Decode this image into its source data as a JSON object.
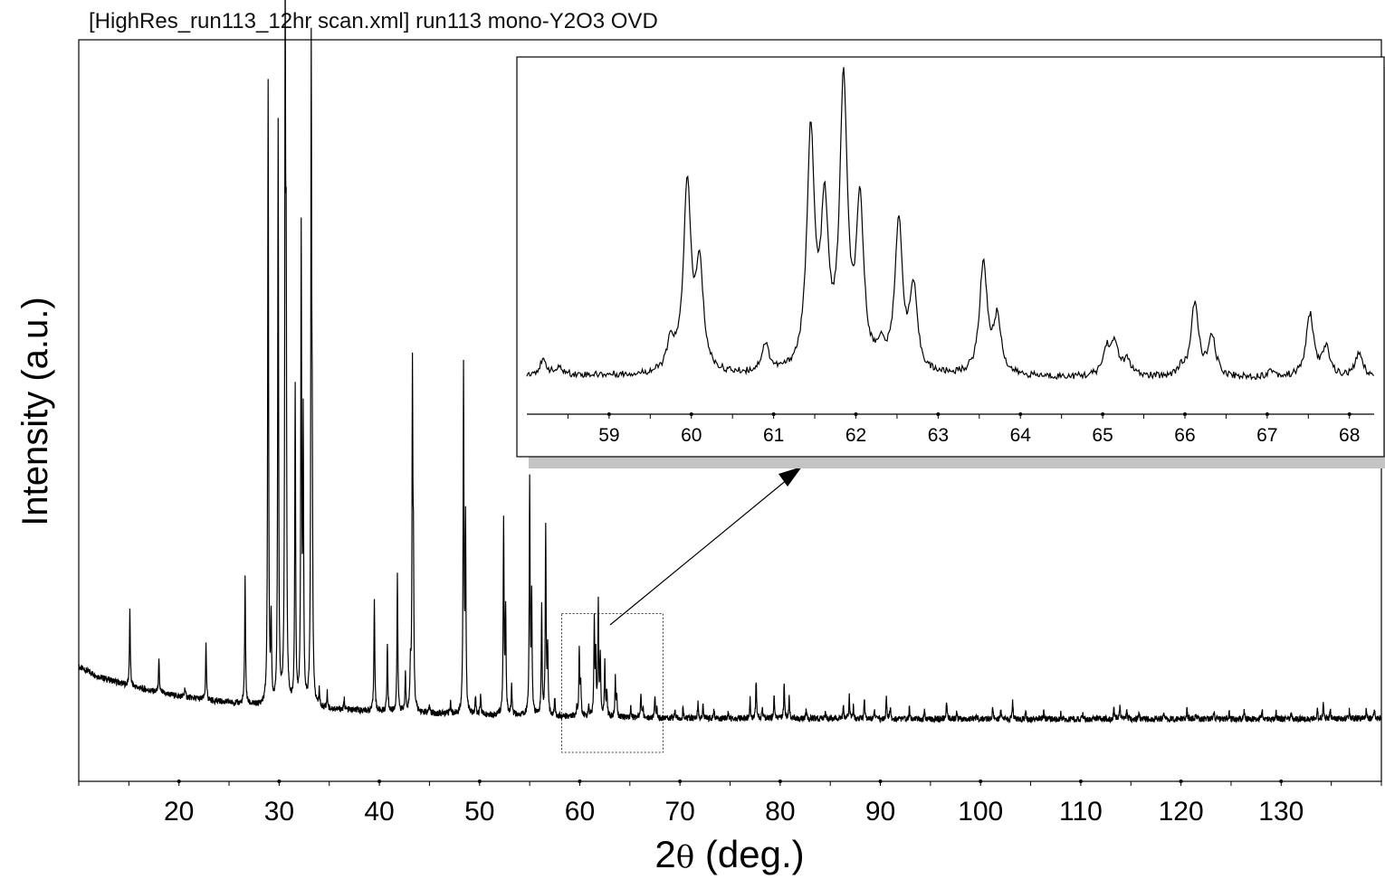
{
  "title": "[HighRes_run113_12hr scan.xml] run113 mono-Y2O3 OVD",
  "chart_data": [
    {
      "type": "line",
      "name": "main-pattern",
      "xlabel_prefix": "2",
      "xlabel_symbol": "θ",
      "xlabel_suffix": " (deg.)",
      "ylabel": "Intensity (a.u.)",
      "xlim": [
        10,
        140
      ],
      "ylim": [
        0,
        100
      ],
      "xticks": [
        20,
        30,
        40,
        50,
        60,
        70,
        80,
        90,
        100,
        110,
        120,
        130
      ],
      "grid": false,
      "background": {
        "x": [
          10,
          12,
          15,
          18,
          20,
          23,
          26,
          28,
          35,
          40,
          45,
          50,
          55,
          60,
          65,
          70,
          80,
          90,
          100,
          110,
          120,
          130,
          140
        ],
        "y": [
          12.3,
          10.9,
          9.6,
          8.6,
          8.1,
          7.5,
          7.0,
          6.7,
          6.2,
          5.9,
          5.6,
          5.4,
          5.3,
          5.1,
          5.0,
          4.9,
          4.9,
          4.8,
          4.8,
          4.8,
          4.8,
          4.8,
          4.9
        ]
      },
      "peaks": [
        {
          "x": 15.1,
          "y": 10.8
        },
        {
          "x": 18.0,
          "y": 4.6
        },
        {
          "x": 20.6,
          "y": 1.4
        },
        {
          "x": 22.7,
          "y": 7.8
        },
        {
          "x": 26.6,
          "y": 18.3
        },
        {
          "x": 28.9,
          "y": 89.9
        },
        {
          "x": 29.2,
          "y": 11.3
        },
        {
          "x": 29.9,
          "y": 83.5
        },
        {
          "x": 30.6,
          "y": 96.5
        },
        {
          "x": 30.7,
          "y": 55.0
        },
        {
          "x": 31.6,
          "y": 45.8
        },
        {
          "x": 32.2,
          "y": 67.6
        },
        {
          "x": 32.4,
          "y": 40.0
        },
        {
          "x": 33.2,
          "y": 91.5
        },
        {
          "x": 33.3,
          "y": 30.0
        },
        {
          "x": 34.0,
          "y": 2.5
        },
        {
          "x": 34.8,
          "y": 2.2
        },
        {
          "x": 36.5,
          "y": 1.5
        },
        {
          "x": 39.5,
          "y": 16.5
        },
        {
          "x": 40.8,
          "y": 9.7
        },
        {
          "x": 41.8,
          "y": 19.5
        },
        {
          "x": 42.6,
          "y": 5.3
        },
        {
          "x": 43.1,
          "y": 6.2
        },
        {
          "x": 43.3,
          "y": 47.4
        },
        {
          "x": 43.4,
          "y": 19.0
        },
        {
          "x": 45.0,
          "y": 1.2
        },
        {
          "x": 47.1,
          "y": 1.8
        },
        {
          "x": 48.4,
          "y": 49.4
        },
        {
          "x": 48.6,
          "y": 27.0
        },
        {
          "x": 49.6,
          "y": 2.4
        },
        {
          "x": 50.1,
          "y": 3.0
        },
        {
          "x": 52.4,
          "y": 28.0
        },
        {
          "x": 52.6,
          "y": 15.0
        },
        {
          "x": 53.2,
          "y": 4.0
        },
        {
          "x": 55.0,
          "y": 33.3
        },
        {
          "x": 55.2,
          "y": 17.0
        },
        {
          "x": 56.2,
          "y": 15.5
        },
        {
          "x": 56.6,
          "y": 27.0
        },
        {
          "x": 56.8,
          "y": 9.0
        },
        {
          "x": 57.5,
          "y": 2.5
        },
        {
          "x": 59.7,
          "y": 1.2
        },
        {
          "x": 59.95,
          "y": 9.8
        },
        {
          "x": 60.1,
          "y": 4.5
        },
        {
          "x": 60.9,
          "y": 1.6
        },
        {
          "x": 61.45,
          "y": 13.4
        },
        {
          "x": 61.6,
          "y": 8.0
        },
        {
          "x": 61.85,
          "y": 16.1
        },
        {
          "x": 62.05,
          "y": 8.6
        },
        {
          "x": 62.5,
          "y": 8.0
        },
        {
          "x": 62.7,
          "y": 3.8
        },
        {
          "x": 63.55,
          "y": 5.5
        },
        {
          "x": 63.7,
          "y": 2.8
        },
        {
          "x": 65.1,
          "y": 1.5
        },
        {
          "x": 66.1,
          "y": 3.3
        },
        {
          "x": 66.3,
          "y": 1.4
        },
        {
          "x": 67.5,
          "y": 3.0
        },
        {
          "x": 67.7,
          "y": 1.2
        },
        {
          "x": 69.5,
          "y": 1.2
        },
        {
          "x": 70.3,
          "y": 1.4
        },
        {
          "x": 71.8,
          "y": 2.2
        },
        {
          "x": 72.3,
          "y": 1.8
        },
        {
          "x": 73.4,
          "y": 1.2
        },
        {
          "x": 74.8,
          "y": 0.8
        },
        {
          "x": 77.0,
          "y": 2.8
        },
        {
          "x": 77.6,
          "y": 5.4
        },
        {
          "x": 78.2,
          "y": 1.5
        },
        {
          "x": 79.4,
          "y": 3.4
        },
        {
          "x": 80.4,
          "y": 5.0
        },
        {
          "x": 80.9,
          "y": 3.0
        },
        {
          "x": 82.6,
          "y": 1.3
        },
        {
          "x": 84.5,
          "y": 1.0
        },
        {
          "x": 86.3,
          "y": 1.8
        },
        {
          "x": 86.9,
          "y": 3.3
        },
        {
          "x": 87.3,
          "y": 1.7
        },
        {
          "x": 88.4,
          "y": 3.0
        },
        {
          "x": 89.4,
          "y": 1.4
        },
        {
          "x": 90.6,
          "y": 3.0
        },
        {
          "x": 91.0,
          "y": 1.9
        },
        {
          "x": 92.9,
          "y": 1.8
        },
        {
          "x": 94.4,
          "y": 1.3
        },
        {
          "x": 96.6,
          "y": 2.7
        },
        {
          "x": 97.6,
          "y": 1.0
        },
        {
          "x": 99.6,
          "y": 0.8
        },
        {
          "x": 101.2,
          "y": 1.8
        },
        {
          "x": 102.0,
          "y": 1.4
        },
        {
          "x": 103.2,
          "y": 2.4
        },
        {
          "x": 104.5,
          "y": 1.0
        },
        {
          "x": 106.3,
          "y": 1.0
        },
        {
          "x": 108.0,
          "y": 0.8
        },
        {
          "x": 110.2,
          "y": 0.8
        },
        {
          "x": 113.3,
          "y": 1.5
        },
        {
          "x": 113.9,
          "y": 1.9
        },
        {
          "x": 114.6,
          "y": 1.3
        },
        {
          "x": 115.8,
          "y": 0.9
        },
        {
          "x": 118.3,
          "y": 1.0
        },
        {
          "x": 120.6,
          "y": 1.3
        },
        {
          "x": 121.5,
          "y": 0.9
        },
        {
          "x": 123.3,
          "y": 0.9
        },
        {
          "x": 124.8,
          "y": 1.0
        },
        {
          "x": 126.3,
          "y": 1.3
        },
        {
          "x": 128.1,
          "y": 1.3
        },
        {
          "x": 129.5,
          "y": 1.0
        },
        {
          "x": 131.0,
          "y": 0.9
        },
        {
          "x": 133.6,
          "y": 1.6
        },
        {
          "x": 134.2,
          "y": 2.3
        },
        {
          "x": 134.9,
          "y": 1.4
        },
        {
          "x": 136.8,
          "y": 1.1
        },
        {
          "x": 138.5,
          "y": 1.4
        },
        {
          "x": 139.3,
          "y": 1.3
        }
      ],
      "zoom_region": {
        "x": [
          58.2,
          68.3
        ],
        "y": [
          0,
          20
        ]
      }
    },
    {
      "type": "line",
      "name": "inset-zoom",
      "xlim": [
        58.0,
        68.3
      ],
      "ylim": [
        0,
        100
      ],
      "xticks": [
        59,
        60,
        61,
        62,
        63,
        64,
        65,
        66,
        67,
        68
      ],
      "grid": false,
      "background": {
        "x": [
          58.0,
          60.0,
          62.0,
          64.0,
          66.0,
          68.3
        ],
        "y": [
          8.5,
          8.2,
          8.0,
          7.8,
          7.6,
          7.6
        ]
      },
      "peaks": [
        {
          "x": 58.2,
          "y": 4.0
        },
        {
          "x": 58.4,
          "y": 1.8
        },
        {
          "x": 59.75,
          "y": 8.5
        },
        {
          "x": 59.95,
          "y": 56.0
        },
        {
          "x": 60.1,
          "y": 30.5
        },
        {
          "x": 60.9,
          "y": 8.5
        },
        {
          "x": 61.45,
          "y": 71.0
        },
        {
          "x": 61.62,
          "y": 46.0
        },
        {
          "x": 61.85,
          "y": 85.5
        },
        {
          "x": 62.05,
          "y": 48.5
        },
        {
          "x": 62.3,
          "y": 6.0
        },
        {
          "x": 62.52,
          "y": 45.0
        },
        {
          "x": 62.7,
          "y": 24.5
        },
        {
          "x": 63.55,
          "y": 34.0
        },
        {
          "x": 63.72,
          "y": 16.5
        },
        {
          "x": 65.05,
          "y": 8.0
        },
        {
          "x": 65.15,
          "y": 9.0
        },
        {
          "x": 65.3,
          "y": 4.5
        },
        {
          "x": 65.95,
          "y": 2.0
        },
        {
          "x": 66.12,
          "y": 22.0
        },
        {
          "x": 66.33,
          "y": 11.5
        },
        {
          "x": 67.05,
          "y": 2.0
        },
        {
          "x": 67.52,
          "y": 19.0
        },
        {
          "x": 67.72,
          "y": 8.5
        },
        {
          "x": 68.12,
          "y": 7.5
        }
      ]
    }
  ]
}
